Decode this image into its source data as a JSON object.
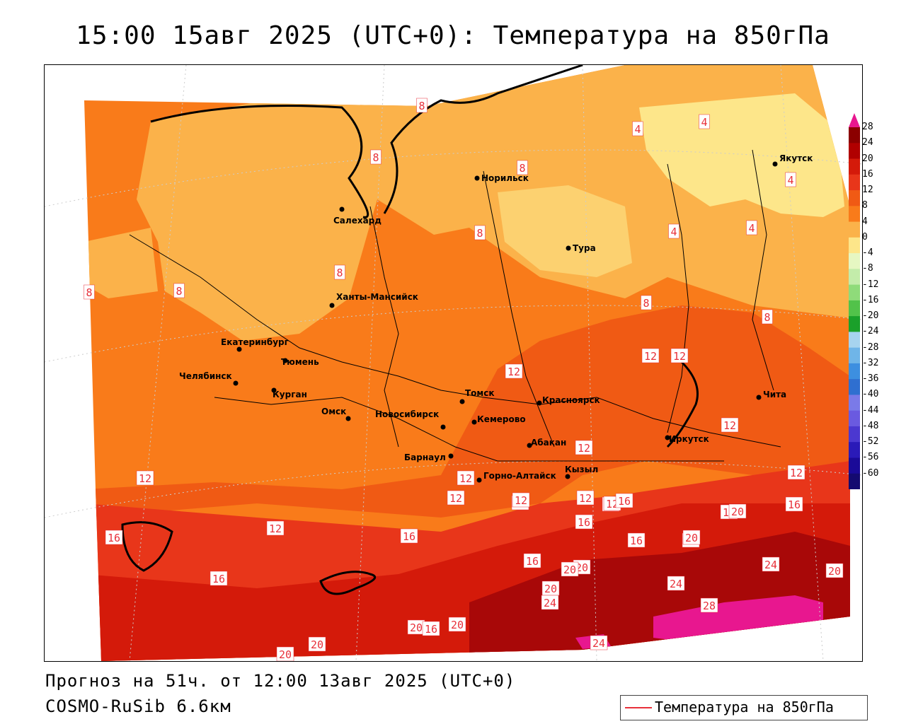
{
  "title": "15:00 15авг 2025 (UTC+0): Температура на 850гПа",
  "forecast_line": "Прогноз на 51ч. от 12:00 13авг 2025 (UTC+0)",
  "model_line": "COSMO-RuSib 6.6км",
  "legend": {
    "line_color": "#e8303a",
    "label": "Температура на 850гПа"
  },
  "colorbar": {
    "ticks": [
      "28",
      "24",
      "20",
      "16",
      "12",
      "8",
      "4",
      "0",
      "-4",
      "-8",
      "-12",
      "-16",
      "-20",
      "-24",
      "-28",
      "-32",
      "-36",
      "-40",
      "-44",
      "-48",
      "-52",
      "-56",
      "-60"
    ],
    "colors": [
      "#8b0000",
      "#b00000",
      "#d41a0a",
      "#e8361a",
      "#f05a14",
      "#f97b1a",
      "#fbb24a",
      "#fde68a",
      "#e6f7c2",
      "#c3ecaa",
      "#8fdb7a",
      "#52c24a",
      "#1aa02a",
      "#a7d4ef",
      "#6fb5e8",
      "#3d8fe0",
      "#2f6fd0",
      "#7a7ae8",
      "#6a5ae0",
      "#4b38d0",
      "#2a1ab8",
      "#1a0a98",
      "#140a70"
    ],
    "top_color": "#e8178f"
  },
  "contour_labels": [
    "8",
    "8",
    "4",
    "4",
    "4",
    "4",
    "4",
    "8",
    "8",
    "8",
    "8",
    "8",
    "8",
    "8",
    "12",
    "12",
    "12",
    "12",
    "12",
    "12",
    "12",
    "12",
    "12",
    "12",
    "12",
    "12",
    "12",
    "12",
    "12",
    "16",
    "16",
    "16",
    "16",
    "16",
    "16",
    "16",
    "16",
    "16",
    "16",
    "20",
    "20",
    "20",
    "20",
    "20",
    "20",
    "20",
    "20",
    "20",
    "20",
    "24",
    "24",
    "24",
    "24",
    "28",
    "16"
  ],
  "cities": [
    "Норильск",
    "Салехард",
    "Якутск",
    "Тура",
    "Ханты-Мансийск",
    "Екатеринбург",
    "Тюмень",
    "Челябинск",
    "Курган",
    "Омск",
    "Новосибирск",
    "Томск",
    "Кемерово",
    "Красноярск",
    "Абакан",
    "Барнаул",
    "Горно-Алтайск",
    "Кызыл",
    "Иркутск",
    "Чита"
  ],
  "map_colors": {
    "zone_0_4": "#fde68a",
    "zone_4_8": "#fbb24a",
    "zone_8_12": "#f97b1a",
    "zone_12_16": "#f05a14",
    "zone_16_20": "#e8361a",
    "zone_20_24": "#d41a0a",
    "zone_24_28": "#a80808",
    "zone_28": "#e8178f"
  }
}
